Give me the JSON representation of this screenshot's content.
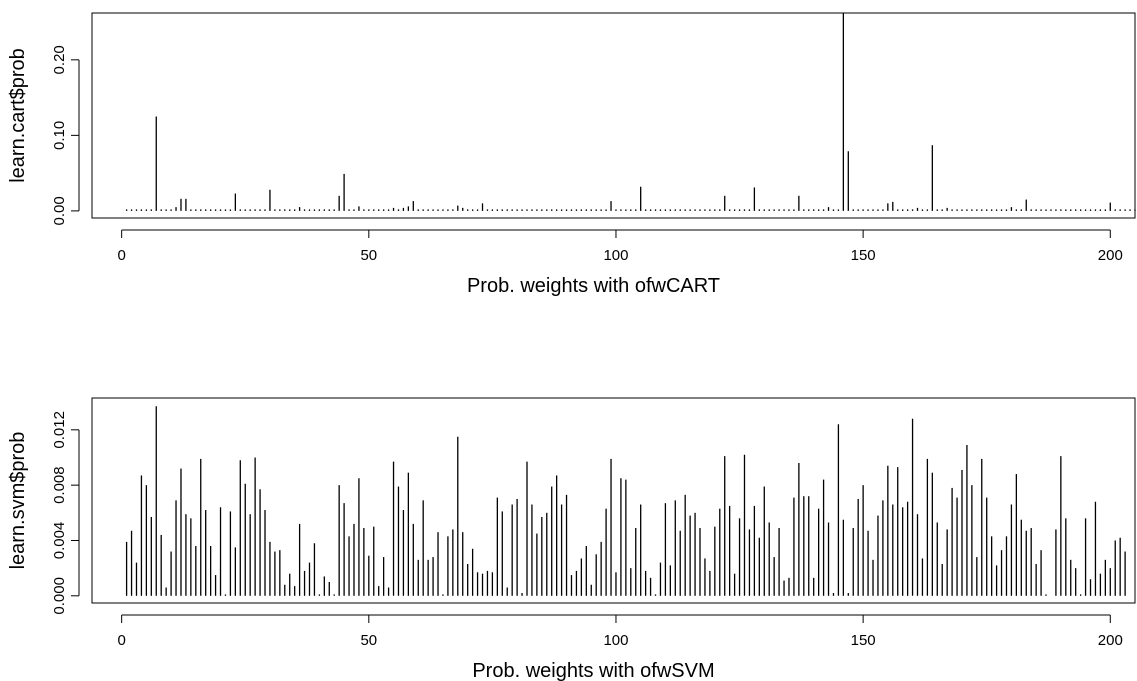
{
  "chart_data": [
    {
      "type": "bar",
      "xlabel": "Prob. weights with ofwCART",
      "ylabel": "learn.cart$prob",
      "xlim": [
        -6,
        205
      ],
      "ylim": [
        -0.0094,
        0.262
      ],
      "xticks": [
        0,
        50,
        100,
        150,
        200
      ],
      "xtick_labels": [
        "0",
        "50",
        "100",
        "150",
        "200"
      ],
      "yticks": [
        0.0,
        0.1,
        0.2
      ],
      "ytick_labels": [
        "0.00",
        "0.10",
        "0.20"
      ],
      "grid": false,
      "x_start": 1,
      "values": [
        0.002,
        0.002,
        0.002,
        0.002,
        0.002,
        0.002,
        0.125,
        0.002,
        0.002,
        0.002,
        0.005,
        0.016,
        0.016,
        0.002,
        0.002,
        0.002,
        0.002,
        0.002,
        0.002,
        0.002,
        0.002,
        0.002,
        0.023,
        0.002,
        0.002,
        0.002,
        0.002,
        0.002,
        0.002,
        0.028,
        0.002,
        0.002,
        0.002,
        0.002,
        0.002,
        0.005,
        0.002,
        0.002,
        0.002,
        0.002,
        0.002,
        0.002,
        0.002,
        0.02,
        0.049,
        0.002,
        0.002,
        0.006,
        0.002,
        0.002,
        0.002,
        0.002,
        0.002,
        0.002,
        0.004,
        0.002,
        0.004,
        0.006,
        0.013,
        0.002,
        0.002,
        0.002,
        0.002,
        0.002,
        0.002,
        0.002,
        0.002,
        0.007,
        0.004,
        0.002,
        0.002,
        0.002,
        0.01,
        0.002,
        0.002,
        0.002,
        0.002,
        0.002,
        0.002,
        0.002,
        0.002,
        0.002,
        0.002,
        0.002,
        0.002,
        0.002,
        0.002,
        0.002,
        0.002,
        0.002,
        0.002,
        0.002,
        0.002,
        0.002,
        0.002,
        0.002,
        0.002,
        0.002,
        0.013,
        0.002,
        0.002,
        0.002,
        0.002,
        0.002,
        0.032,
        0.002,
        0.002,
        0.002,
        0.002,
        0.002,
        0.002,
        0.002,
        0.002,
        0.002,
        0.002,
        0.002,
        0.002,
        0.002,
        0.002,
        0.002,
        0.002,
        0.02,
        0.002,
        0.002,
        0.002,
        0.002,
        0.002,
        0.031,
        0.002,
        0.002,
        0.002,
        0.002,
        0.002,
        0.002,
        0.002,
        0.002,
        0.02,
        0.002,
        0.002,
        0.002,
        0.002,
        0.002,
        0.005,
        0.002,
        0.002,
        0.262,
        0.079,
        0.002,
        0.002,
        0.002,
        0.002,
        0.002,
        0.002,
        0.002,
        0.01,
        0.012,
        0.002,
        0.002,
        0.002,
        0.002,
        0.004,
        0.002,
        0.002,
        0.087,
        0.002,
        0.002,
        0.004,
        0.002,
        0.002,
        0.002,
        0.002,
        0.002,
        0.002,
        0.002,
        0.002,
        0.002,
        0.002,
        0.002,
        0.002,
        0.005,
        0.002,
        0.002,
        0.015,
        0.002,
        0.002,
        0.002,
        0.002,
        0.002,
        0.002,
        0.002,
        0.002,
        0.002,
        0.002,
        0.002,
        0.002,
        0.002,
        0.002,
        0.002,
        0.002,
        0.011,
        0.002,
        0.002,
        0.002,
        0.002,
        0.002
      ]
    },
    {
      "type": "bar",
      "xlabel": "Prob. weights with ofwSVM",
      "ylabel": "learn.svm$prob",
      "xlim": [
        -6,
        205
      ],
      "ylim": [
        -0.00052,
        0.0143
      ],
      "xticks": [
        0,
        50,
        100,
        150,
        200
      ],
      "xtick_labels": [
        "0",
        "50",
        "100",
        "150",
        "200"
      ],
      "yticks": [
        0.0,
        0.004,
        0.008,
        0.012
      ],
      "ytick_labels": [
        "0.000",
        "0.004",
        "0.008",
        "0.012"
      ],
      "grid": false,
      "x_start": 1,
      "values": [
        0.0039,
        0.0047,
        0.0024,
        0.0087,
        0.008,
        0.0057,
        0.0137,
        0.0044,
        0.0006,
        0.0032,
        0.0069,
        0.0092,
        0.0059,
        0.0056,
        0.0036,
        0.0099,
        0.0062,
        0.0036,
        0.0015,
        0.0064,
        0.0001,
        0.0061,
        0.0035,
        0.0098,
        0.0081,
        0.0059,
        0.01,
        0.0077,
        0.0062,
        0.0039,
        0.0032,
        0.0033,
        0.0008,
        0.0016,
        0.0007,
        0.0052,
        0.0018,
        0.0024,
        0.0038,
        0.0001,
        0.0014,
        0.001,
        0.0001,
        0.008,
        0.0067,
        0.0043,
        0.0052,
        0.0085,
        0.0049,
        0.0029,
        0.005,
        0.0007,
        0.0028,
        0.0006,
        0.0097,
        0.0079,
        0.0062,
        0.0089,
        0.0052,
        0.0026,
        0.0069,
        0.0026,
        0.0028,
        0.0046,
        0.0001,
        0.0043,
        0.0048,
        0.0115,
        0.0046,
        0.0023,
        0.0034,
        0.0017,
        0.0016,
        0.0018,
        0.0017,
        0.0071,
        0.0061,
        0.0006,
        0.0066,
        0.007,
        0.0002,
        0.0097,
        0.0066,
        0.0045,
        0.0057,
        0.006,
        0.0079,
        0.0087,
        0.0066,
        0.0073,
        0.0015,
        0.0018,
        0.0027,
        0.0036,
        0.0008,
        0.003,
        0.0039,
        0.0063,
        0.0099,
        0.0017,
        0.0085,
        0.0084,
        0.002,
        0.0049,
        0.0066,
        0.0018,
        0.0013,
        0.0001,
        0.0024,
        0.0067,
        0.0022,
        0.0069,
        0.0047,
        0.0073,
        0.0058,
        0.006,
        0.0049,
        0.0027,
        0.0018,
        0.005,
        0.0063,
        0.0101,
        0.0065,
        0.0016,
        0.0056,
        0.0102,
        0.0048,
        0.0065,
        0.0042,
        0.0079,
        0.0053,
        0.0028,
        0.0049,
        0.0011,
        0.0013,
        0.0071,
        0.0096,
        0.0072,
        0.0072,
        0.0013,
        0.0063,
        0.0084,
        0.0053,
        0.0002,
        0.0124,
        0.0055,
        0.0002,
        0.0049,
        0.007,
        0.008,
        0.0047,
        0.0026,
        0.0058,
        0.0069,
        0.0094,
        0.0066,
        0.0093,
        0.0064,
        0.0068,
        0.0128,
        0.0059,
        0.0027,
        0.0099,
        0.0089,
        0.0053,
        0.0023,
        0.0048,
        0.0078,
        0.0071,
        0.0091,
        0.0109,
        0.008,
        0.0028,
        0.0099,
        0.0071,
        0.0043,
        0.0022,
        0.0033,
        0.0043,
        0.0066,
        0.0088,
        0.0055,
        0.0047,
        0.0049,
        0.0023,
        0.0033,
        0.0001,
        0.0,
        0.0048,
        0.0101,
        0.0056,
        0.0026,
        0.002,
        0.0001,
        0.0056,
        0.0012,
        0.0068,
        0.0016,
        0.0026,
        0.002,
        0.004,
        0.0042,
        0.0032
      ]
    }
  ]
}
